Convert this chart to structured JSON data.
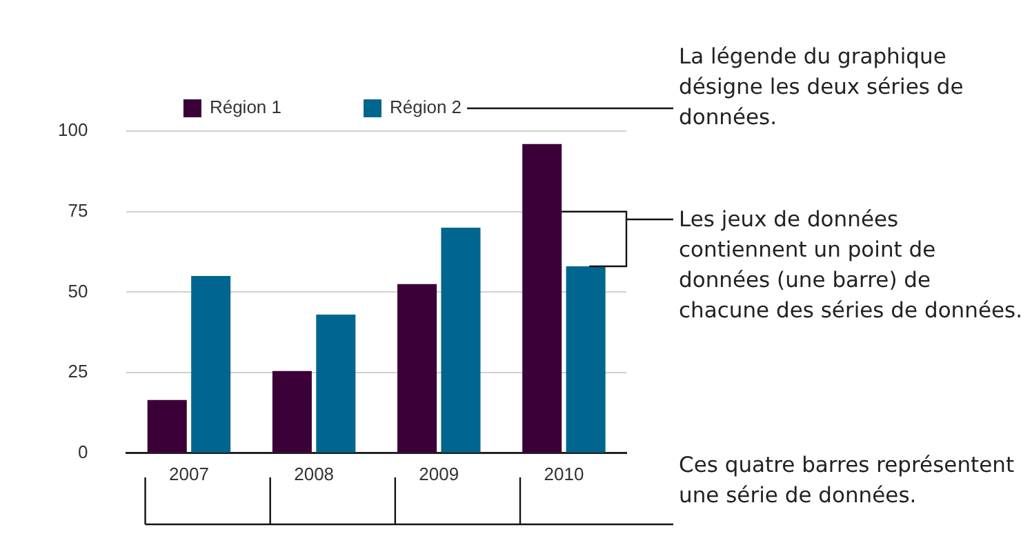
{
  "chart_data": {
    "type": "bar",
    "categories": [
      "2007",
      "2008",
      "2009",
      "2010"
    ],
    "series": [
      {
        "name": "Région 1",
        "color": "#3b0038",
        "values": [
          16.5,
          25.5,
          52.5,
          96
        ]
      },
      {
        "name": "Région 2",
        "color": "#00668f",
        "values": [
          55,
          43,
          70,
          58
        ]
      }
    ],
    "ylim": [
      0,
      100
    ],
    "yticks": [
      0,
      25,
      50,
      75,
      100
    ],
    "grid": "y",
    "legend": "top",
    "annotations": [
      "La légende du graphique désigne les deux séries de données.",
      "Les jeux de données contiennent un point de données (une barre) de chacune des séries de données.",
      "Ces quatre barres représentent une série de données."
    ]
  }
}
